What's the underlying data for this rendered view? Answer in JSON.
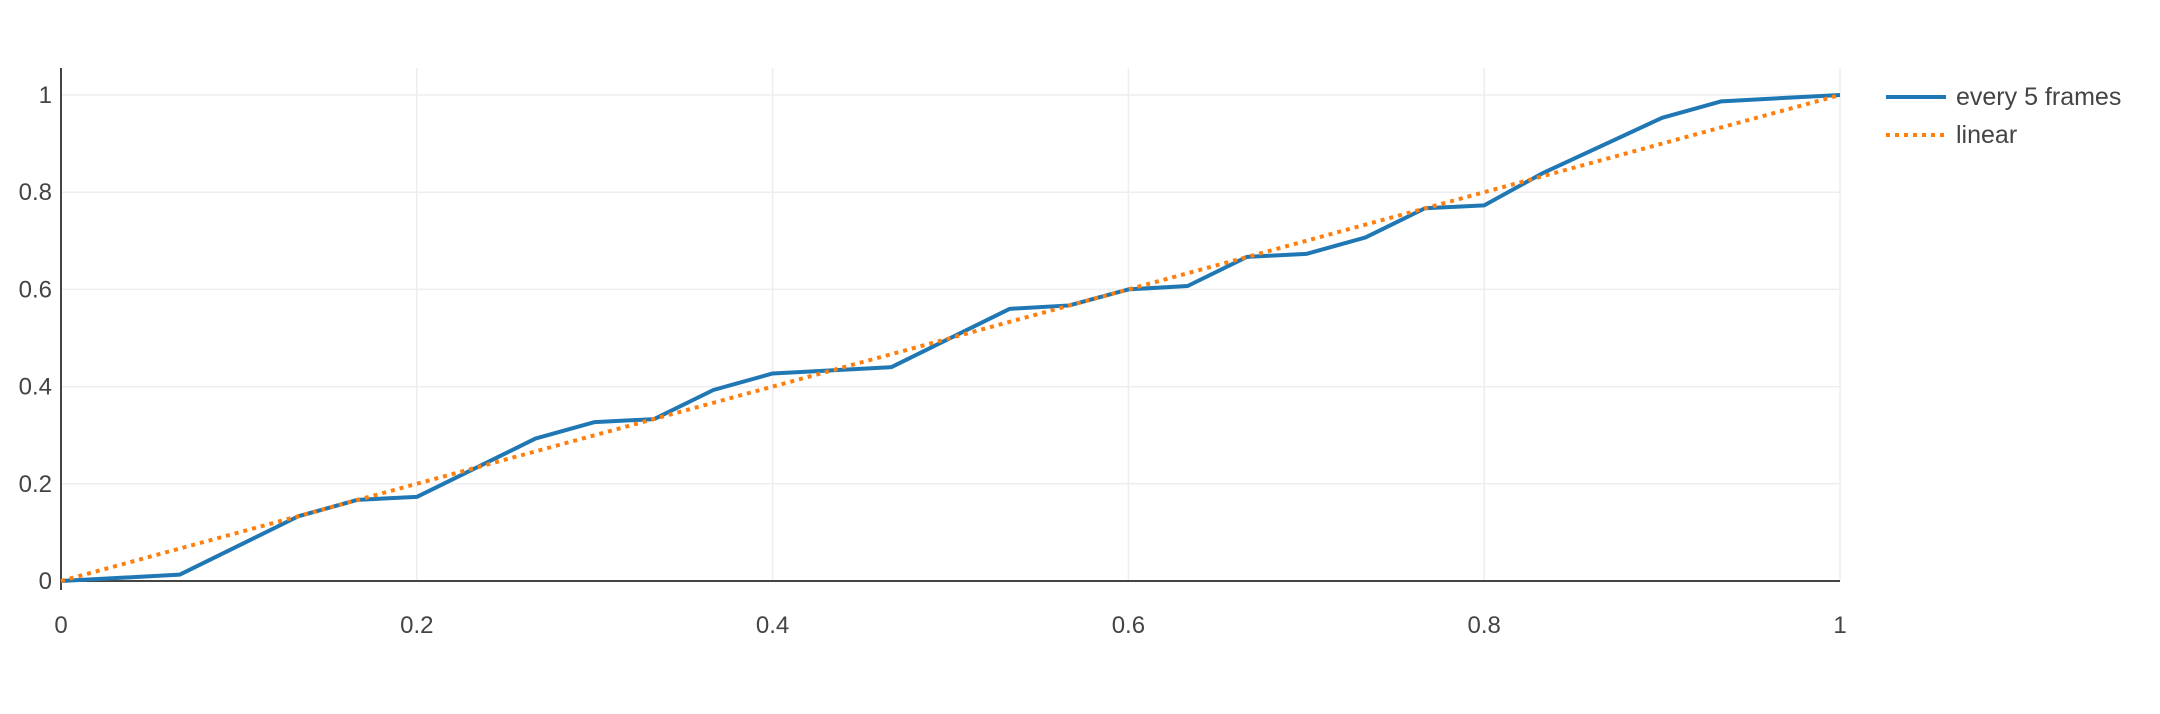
{
  "chart_data": {
    "type": "line",
    "title": "",
    "xlabel": "",
    "ylabel": "",
    "xlim": [
      0,
      1
    ],
    "ylim": [
      0,
      1
    ],
    "x_ticks": [
      "0",
      "0.2",
      "0.4",
      "0.6",
      "0.8",
      "1"
    ],
    "y_ticks": [
      "0",
      "0.2",
      "0.4",
      "0.6",
      "0.8",
      "1"
    ],
    "grid": true,
    "legend_position": "top-right, outside plot",
    "series": [
      {
        "name": "every 5 frames",
        "color": "#1f77b4",
        "dash": "solid",
        "x": [
          0,
          0.0667,
          0.1333,
          0.1667,
          0.2,
          0.2667,
          0.3,
          0.3333,
          0.3667,
          0.4,
          0.4667,
          0.5333,
          0.5667,
          0.6,
          0.6333,
          0.6667,
          0.7,
          0.7333,
          0.7667,
          0.8,
          0.8333,
          0.9,
          0.9333,
          1
        ],
        "y": [
          0,
          0.013,
          0.133,
          0.167,
          0.173,
          0.293,
          0.327,
          0.333,
          0.393,
          0.427,
          0.44,
          0.56,
          0.567,
          0.6,
          0.607,
          0.667,
          0.673,
          0.707,
          0.767,
          0.773,
          0.84,
          0.953,
          0.987,
          1
        ]
      },
      {
        "name": "linear",
        "color": "#ff7f0e",
        "dash": "dot",
        "x": [
          0,
          1
        ],
        "y": [
          0,
          1
        ]
      }
    ]
  }
}
